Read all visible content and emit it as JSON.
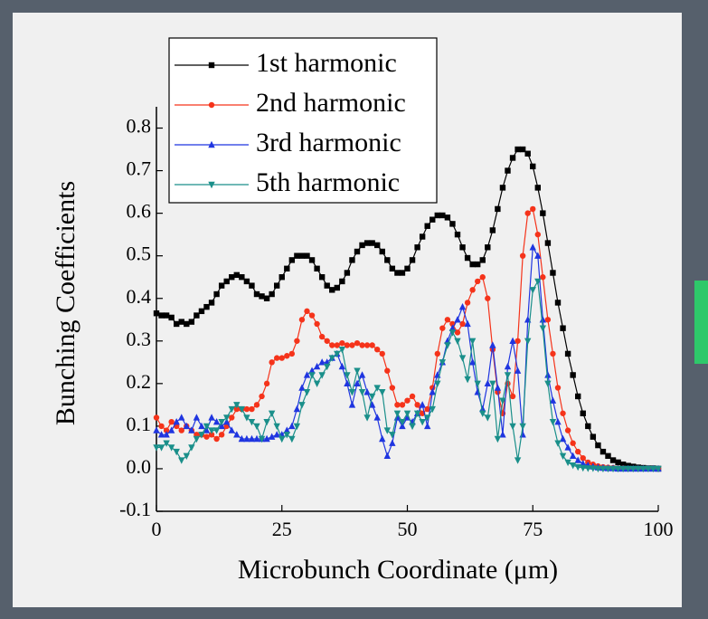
{
  "chart_data": {
    "type": "line",
    "xlabel": "Microbunch Coordinate (μm)",
    "ylabel": "Bunching Coefficients",
    "xlim": [
      0,
      100
    ],
    "xticks": [
      0,
      25,
      50,
      75,
      100
    ],
    "ylim": [
      -0.1,
      0.85
    ],
    "yticks": [
      -0.1,
      {
        "value": 0,
        "label": "0.0"
      },
      0.1,
      0.2,
      0.3,
      0.4,
      0.5,
      0.6,
      0.7,
      0.8
    ],
    "legend": "upper left",
    "x": [
      0,
      1,
      2,
      3,
      4,
      5,
      6,
      7,
      8,
      9,
      10,
      11,
      12,
      13,
      14,
      15,
      16,
      17,
      18,
      19,
      20,
      21,
      22,
      23,
      24,
      25,
      26,
      27,
      28,
      29,
      30,
      31,
      32,
      33,
      34,
      35,
      36,
      37,
      38,
      39,
      40,
      41,
      42,
      43,
      44,
      45,
      46,
      47,
      48,
      49,
      50,
      51,
      52,
      53,
      54,
      55,
      56,
      57,
      58,
      59,
      60,
      61,
      62,
      63,
      64,
      65,
      66,
      67,
      68,
      69,
      70,
      71,
      72,
      73,
      74,
      75,
      76,
      77,
      78,
      79,
      80,
      81,
      82,
      83,
      84,
      85,
      86,
      87,
      88,
      89,
      90,
      91,
      92,
      93,
      94,
      95,
      96,
      97,
      98,
      99,
      100
    ],
    "series": [
      {
        "name": "1st harmonic",
        "color": "#000000",
        "marker": "square",
        "values": [
          0.365,
          0.36,
          0.36,
          0.355,
          0.34,
          0.345,
          0.34,
          0.345,
          0.36,
          0.37,
          0.38,
          0.39,
          0.41,
          0.43,
          0.44,
          0.45,
          0.455,
          0.45,
          0.44,
          0.43,
          0.41,
          0.405,
          0.4,
          0.41,
          0.43,
          0.45,
          0.47,
          0.49,
          0.5,
          0.5,
          0.5,
          0.49,
          0.47,
          0.45,
          0.43,
          0.42,
          0.425,
          0.44,
          0.46,
          0.49,
          0.51,
          0.525,
          0.53,
          0.53,
          0.525,
          0.51,
          0.49,
          0.47,
          0.46,
          0.46,
          0.47,
          0.49,
          0.52,
          0.545,
          0.57,
          0.585,
          0.595,
          0.595,
          0.59,
          0.575,
          0.55,
          0.52,
          0.495,
          0.48,
          0.48,
          0.49,
          0.52,
          0.56,
          0.61,
          0.66,
          0.7,
          0.73,
          0.75,
          0.75,
          0.74,
          0.71,
          0.66,
          0.6,
          0.53,
          0.46,
          0.39,
          0.33,
          0.27,
          0.22,
          0.17,
          0.13,
          0.1,
          0.075,
          0.055,
          0.04,
          0.03,
          0.02,
          0.015,
          0.01,
          0.007,
          0.005,
          0.003,
          0.002,
          0.001,
          0.001,
          0
        ]
      },
      {
        "name": "2nd harmonic",
        "color": "#f5331a",
        "marker": "circle",
        "values": [
          0.12,
          0.1,
          0.09,
          0.11,
          0.1,
          0.09,
          0.1,
          0.09,
          0.08,
          0.08,
          0.075,
          0.08,
          0.07,
          0.08,
          0.1,
          0.12,
          0.14,
          0.14,
          0.14,
          0.14,
          0.15,
          0.17,
          0.2,
          0.25,
          0.26,
          0.26,
          0.265,
          0.27,
          0.3,
          0.35,
          0.37,
          0.36,
          0.34,
          0.31,
          0.3,
          0.29,
          0.29,
          0.295,
          0.29,
          0.29,
          0.295,
          0.29,
          0.29,
          0.29,
          0.28,
          0.27,
          0.23,
          0.19,
          0.15,
          0.15,
          0.16,
          0.17,
          0.15,
          0.13,
          0.14,
          0.19,
          0.27,
          0.33,
          0.35,
          0.34,
          0.32,
          0.34,
          0.39,
          0.42,
          0.44,
          0.45,
          0.4,
          0.28,
          0.18,
          0.13,
          0.2,
          0.17,
          0.3,
          0.5,
          0.6,
          0.61,
          0.55,
          0.45,
          0.35,
          0.27,
          0.19,
          0.13,
          0.09,
          0.06,
          0.04,
          0.025,
          0.015,
          0.01,
          0.006,
          0.004,
          0.003,
          0.002,
          0.001,
          0.001,
          0,
          0,
          0,
          0,
          0,
          0,
          0
        ]
      },
      {
        "name": "3rd harmonic",
        "color": "#1f35e0",
        "marker": "triangle-up",
        "values": [
          0.09,
          0.08,
          0.08,
          0.09,
          0.11,
          0.12,
          0.1,
          0.09,
          0.12,
          0.1,
          0.09,
          0.12,
          0.11,
          0.1,
          0.11,
          0.09,
          0.08,
          0.07,
          0.07,
          0.07,
          0.07,
          0.07,
          0.07,
          0.075,
          0.08,
          0.08,
          0.09,
          0.1,
          0.14,
          0.19,
          0.22,
          0.23,
          0.24,
          0.25,
          0.25,
          0.26,
          0.27,
          0.24,
          0.2,
          0.15,
          0.2,
          0.22,
          0.18,
          0.15,
          0.12,
          0.07,
          0.03,
          0.06,
          0.12,
          0.1,
          0.12,
          0.11,
          0.13,
          0.15,
          0.1,
          0.18,
          0.22,
          0.25,
          0.3,
          0.33,
          0.35,
          0.38,
          0.34,
          0.25,
          0.18,
          0.14,
          0.2,
          0.29,
          0.19,
          0.08,
          0.24,
          0.3,
          0.23,
          0.08,
          0.35,
          0.52,
          0.5,
          0.35,
          0.22,
          0.16,
          0.11,
          0.07,
          0.05,
          0.03,
          0.02,
          0.012,
          0.008,
          0.005,
          0.003,
          0.002,
          0.001,
          0.001,
          0,
          0,
          0,
          0,
          0,
          0,
          0,
          0,
          0
        ]
      },
      {
        "name": "5th harmonic",
        "color": "#1a8f8a",
        "marker": "triangle-down",
        "values": [
          0.05,
          0.05,
          0.06,
          0.05,
          0.04,
          0.02,
          0.03,
          0.05,
          0.07,
          0.08,
          0.1,
          0.09,
          0.09,
          0.11,
          0.12,
          0.14,
          0.15,
          0.14,
          0.12,
          0.11,
          0.1,
          0.07,
          0.11,
          0.13,
          0.1,
          0.07,
          0.08,
          0.07,
          0.1,
          0.15,
          0.18,
          0.22,
          0.2,
          0.22,
          0.24,
          0.26,
          0.27,
          0.28,
          0.22,
          0.18,
          0.23,
          0.18,
          0.12,
          0.17,
          0.19,
          0.18,
          0.09,
          0.08,
          0.13,
          0.11,
          0.13,
          0.1,
          0.13,
          0.11,
          0.12,
          0.14,
          0.2,
          0.25,
          0.29,
          0.32,
          0.3,
          0.26,
          0.21,
          0.3,
          0.2,
          0.13,
          0.12,
          0.2,
          0.07,
          0.16,
          0.22,
          0.1,
          0.02,
          0.1,
          0.3,
          0.42,
          0.44,
          0.33,
          0.2,
          0.11,
          0.06,
          0.03,
          0.015,
          0.008,
          0.004,
          0.002,
          0.001,
          0.001,
          0,
          0,
          0,
          0,
          0,
          0,
          0,
          0,
          0,
          0,
          0,
          0,
          0
        ]
      }
    ]
  }
}
